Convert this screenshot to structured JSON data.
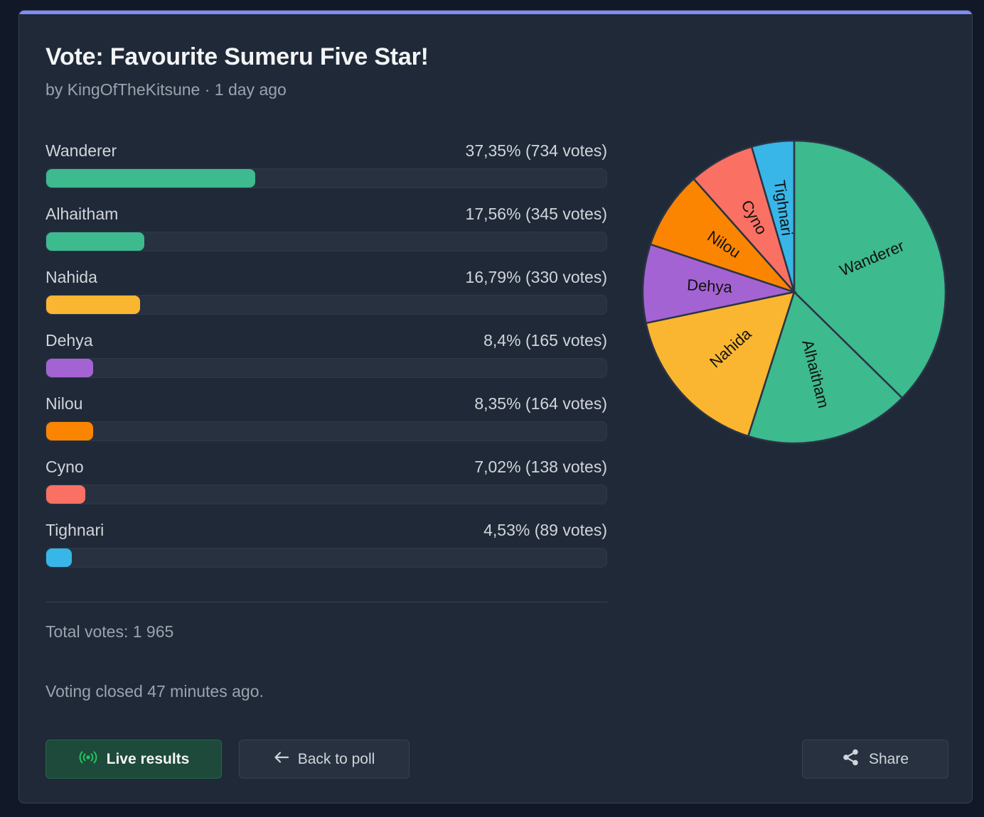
{
  "poll": {
    "title": "Vote: Favourite Sumeru Five Star!",
    "meta": "by KingOfTheKitsune · 1 day ago",
    "total_label": "Total votes: 1 965",
    "closed_label": "Voting closed 47 minutes ago."
  },
  "options": [
    {
      "name": "Wanderer",
      "result": "37,35% (734 votes)",
      "percent": 37.35,
      "votes": 734,
      "color": "#3dba8e"
    },
    {
      "name": "Alhaitham",
      "result": "17,56% (345 votes)",
      "percent": 17.56,
      "votes": 345,
      "color": "#3dba8e"
    },
    {
      "name": "Nahida",
      "result": "16,79% (330 votes)",
      "percent": 16.79,
      "votes": 330,
      "color": "#fbb631"
    },
    {
      "name": "Dehya",
      "result": "8,4% (165 votes)",
      "percent": 8.4,
      "votes": 165,
      "color": "#a463d2"
    },
    {
      "name": "Nilou",
      "result": "8,35% (164 votes)",
      "percent": 8.35,
      "votes": 164,
      "color": "#fb8500"
    },
    {
      "name": "Cyno",
      "result": "7,02% (138 votes)",
      "percent": 7.02,
      "votes": 138,
      "color": "#fa7062"
    },
    {
      "name": "Tighnari",
      "result": "4,53% (89 votes)",
      "percent": 4.53,
      "votes": 89,
      "color": "#38b6e8"
    }
  ],
  "buttons": {
    "live": "Live results",
    "back": "Back to poll",
    "share": "Share"
  },
  "icons": {
    "live": "broadcast-icon",
    "back": "arrow-left-icon",
    "share": "share-icon"
  },
  "colors": {
    "accent": "#818cf8",
    "live_icon": "#22c55e"
  },
  "chart_data": {
    "type": "pie",
    "categories": [
      "Wanderer",
      "Alhaitham",
      "Nahida",
      "Dehya",
      "Nilou",
      "Cyno",
      "Tighnari"
    ],
    "values": [
      734,
      345,
      330,
      165,
      164,
      138,
      89
    ],
    "colors": [
      "#3dba8e",
      "#3dba8e",
      "#fbb631",
      "#a463d2",
      "#fb8500",
      "#fa7062",
      "#38b6e8"
    ],
    "start": "top, clockwise"
  }
}
